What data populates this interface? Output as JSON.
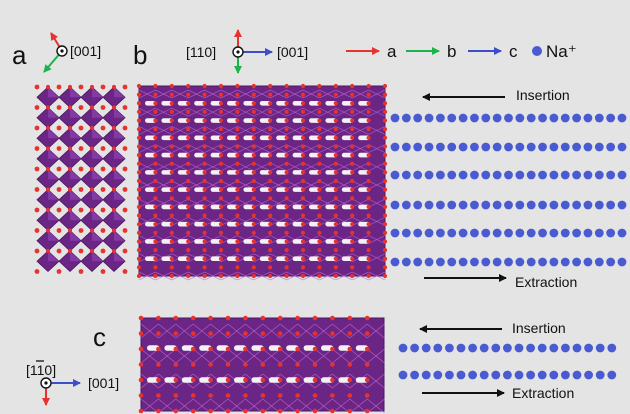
{
  "figure": {
    "panels": {
      "a": "a",
      "b": "b",
      "c": "c"
    },
    "axes": {
      "a_view": "[001]",
      "b_view": "[110]",
      "b_right": "[001]",
      "c_view": "[110]",
      "c_right": "[001]"
    },
    "legend": [
      {
        "arrow_color": "#e8322d",
        "label": "a"
      },
      {
        "arrow_color": "#1bb34a",
        "label": "b"
      },
      {
        "arrow_color": "#3f4cc9",
        "label": "c"
      }
    ],
    "sodium": {
      "dot_color": "#4a5bd1",
      "label": "Na⁺"
    },
    "processes": {
      "b_top": "Insertion",
      "b_bottom": "Extraction",
      "c_top": "Insertion",
      "c_bottom": "Extraction"
    },
    "colors": {
      "background": "#e4e4e4",
      "octahedron_dark": "#6a2585",
      "octahedron_light": "#9b4bc0",
      "oxygen": "#e8322d"
    }
  }
}
